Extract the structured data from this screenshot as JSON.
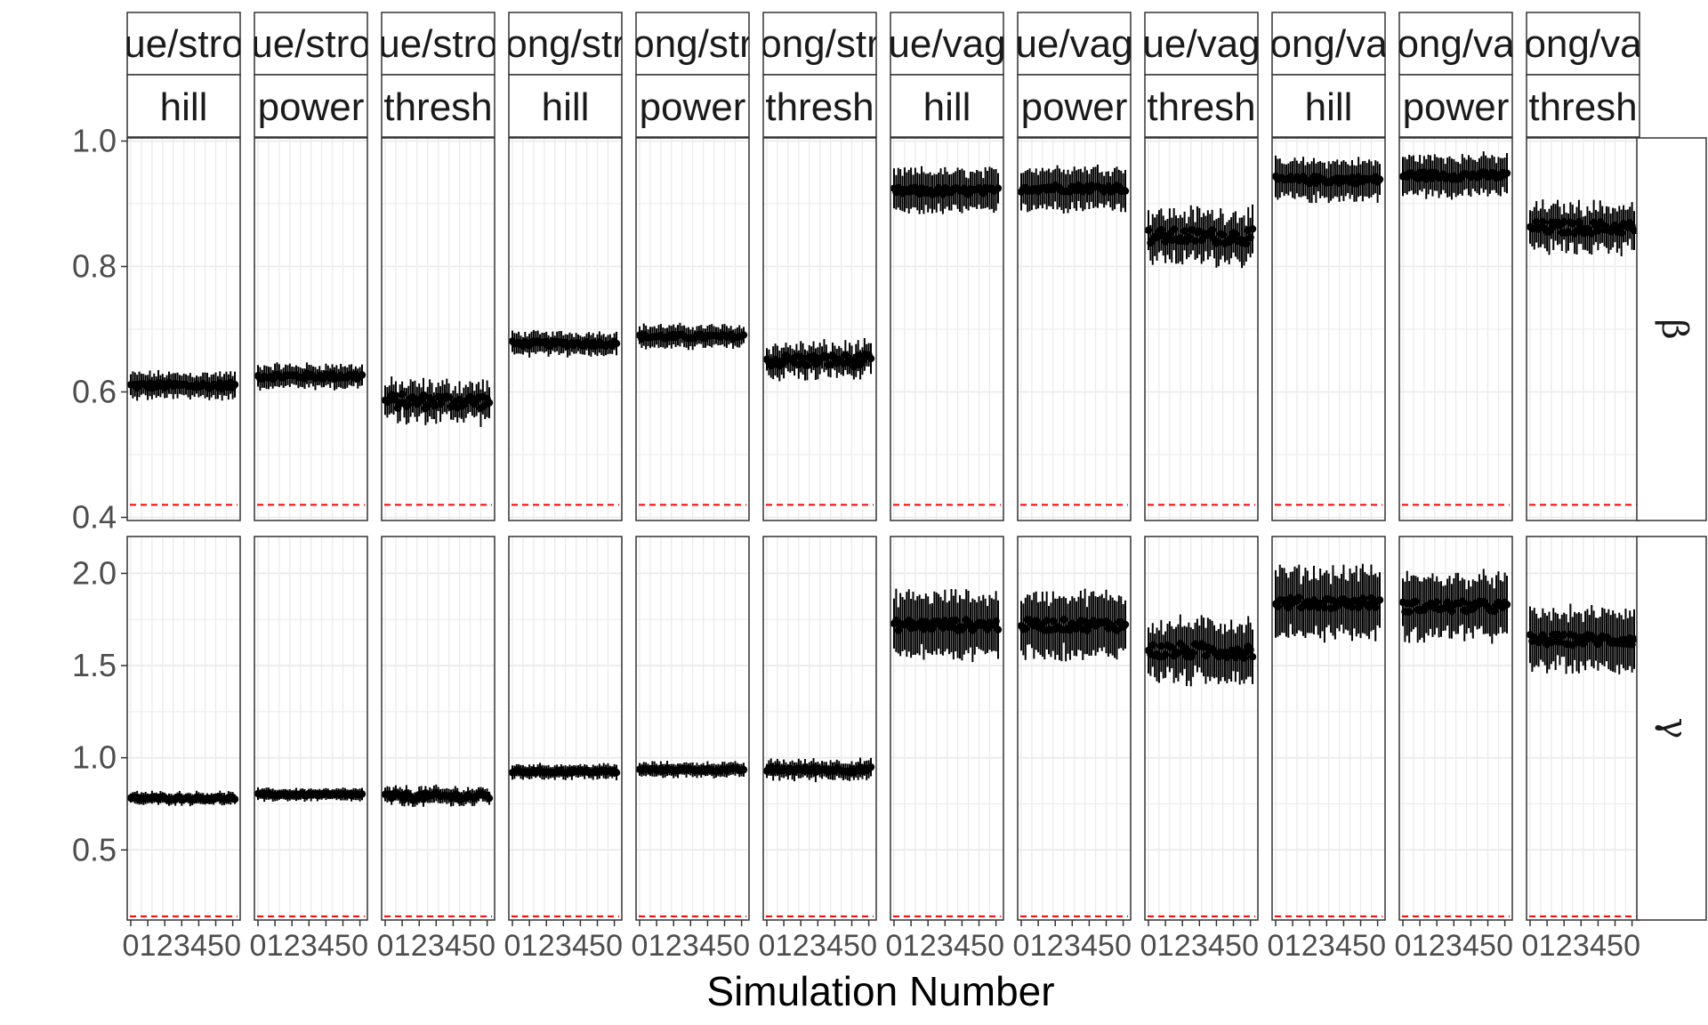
{
  "chart_data": {
    "type": "scatter",
    "xlabel": "Simulation Number",
    "ylabel": "",
    "x_tick_labels": [
      "0",
      "1",
      "2",
      "3",
      "4",
      "5",
      "0"
    ],
    "n_simulations": 50,
    "grid": true,
    "column_facets": [
      {
        "top": "ue/stro",
        "bottom": "hill"
      },
      {
        "top": "ue/stro",
        "bottom": "power"
      },
      {
        "top": "ue/stro",
        "bottom": "thresh"
      },
      {
        "top": "ong/str",
        "bottom": "hill"
      },
      {
        "top": "ong/str",
        "bottom": "power"
      },
      {
        "top": "ong/str",
        "bottom": "thresh"
      },
      {
        "top": "ue/vag",
        "bottom": "hill"
      },
      {
        "top": "ue/vag",
        "bottom": "power"
      },
      {
        "top": "ue/vag",
        "bottom": "thresh"
      },
      {
        "top": "ong/va",
        "bottom": "hill"
      },
      {
        "top": "ong/va",
        "bottom": "power"
      },
      {
        "top": "ong/va",
        "bottom": "thresh"
      }
    ],
    "row_facets": [
      {
        "label": "β",
        "ylim": [
          0.395,
          1.005
        ],
        "yticks": [
          0.4,
          0.6,
          0.8,
          1.0
        ],
        "ytick_labels": [
          "0.4",
          "0.6",
          "0.8",
          "1.0"
        ],
        "reference_line": 0.42,
        "panels": [
          {
            "mean": 0.61,
            "spread": 0.018,
            "jitter": 0.005
          },
          {
            "mean": 0.625,
            "spread": 0.016,
            "jitter": 0.005
          },
          {
            "mean": 0.585,
            "spread": 0.025,
            "jitter": 0.012
          },
          {
            "mean": 0.677,
            "spread": 0.016,
            "jitter": 0.004
          },
          {
            "mean": 0.688,
            "spread": 0.016,
            "jitter": 0.004
          },
          {
            "mean": 0.65,
            "spread": 0.022,
            "jitter": 0.01
          },
          {
            "mean": 0.92,
            "spread": 0.03,
            "jitter": 0.006
          },
          {
            "mean": 0.925,
            "spread": 0.03,
            "jitter": 0.006
          },
          {
            "mean": 0.848,
            "spread": 0.035,
            "jitter": 0.012
          },
          {
            "mean": 0.938,
            "spread": 0.028,
            "jitter": 0.006
          },
          {
            "mean": 0.945,
            "spread": 0.028,
            "jitter": 0.006
          },
          {
            "mean": 0.862,
            "spread": 0.032,
            "jitter": 0.01
          }
        ]
      },
      {
        "label": "γ",
        "ylim": [
          0.12,
          2.2
        ],
        "yticks": [
          0.5,
          1.0,
          1.5,
          2.0
        ],
        "ytick_labels": [
          "0.5",
          "1.0",
          "1.5",
          "2.0"
        ],
        "reference_line": 0.14,
        "panels": [
          {
            "mean": 0.78,
            "spread": 0.03,
            "jitter": 0.008
          },
          {
            "mean": 0.8,
            "spread": 0.03,
            "jitter": 0.006
          },
          {
            "mean": 0.79,
            "spread": 0.04,
            "jitter": 0.02
          },
          {
            "mean": 0.925,
            "spread": 0.035,
            "jitter": 0.008
          },
          {
            "mean": 0.935,
            "spread": 0.035,
            "jitter": 0.008
          },
          {
            "mean": 0.935,
            "spread": 0.045,
            "jitter": 0.015
          },
          {
            "mean": 1.72,
            "spread": 0.15,
            "jitter": 0.03
          },
          {
            "mean": 1.72,
            "spread": 0.15,
            "jitter": 0.03
          },
          {
            "mean": 1.58,
            "spread": 0.14,
            "jitter": 0.04
          },
          {
            "mean": 1.84,
            "spread": 0.16,
            "jitter": 0.03
          },
          {
            "mean": 1.82,
            "spread": 0.15,
            "jitter": 0.03
          },
          {
            "mean": 1.64,
            "spread": 0.14,
            "jitter": 0.03
          }
        ]
      }
    ],
    "colors": {
      "points": "#000000",
      "reference_line": "#ff0000",
      "strip_fill": "#ffffff",
      "panel_border": "#333333",
      "grid": "#ebebeb"
    }
  }
}
